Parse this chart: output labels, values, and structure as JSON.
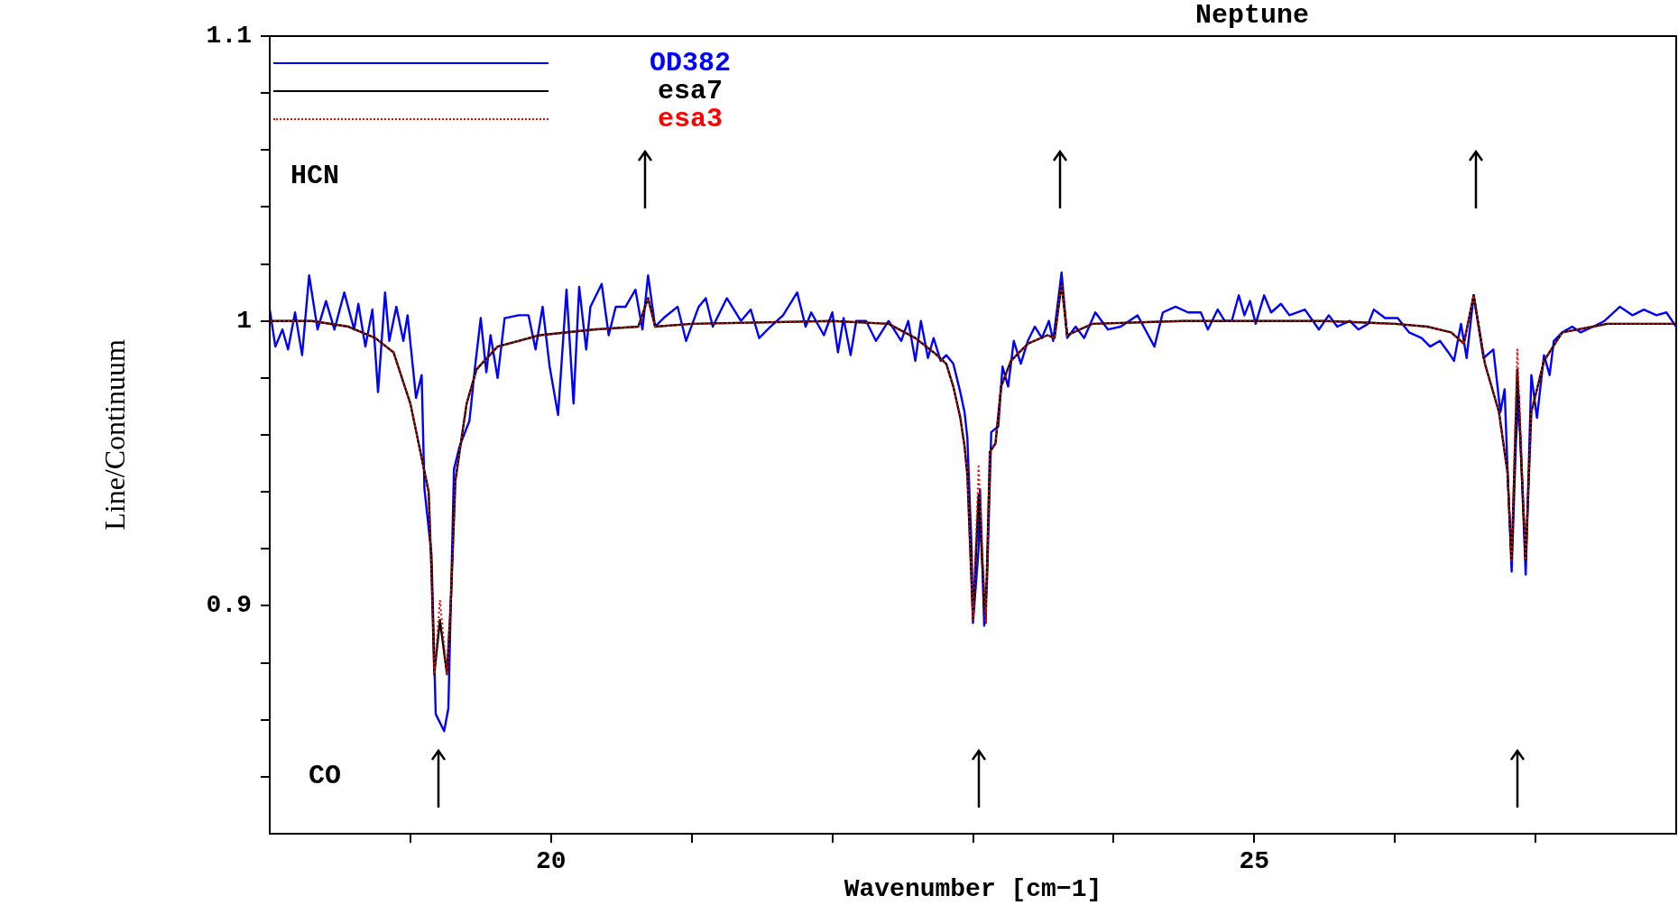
{
  "chart_data": {
    "type": "line",
    "title": "Neptune",
    "xlabel": "Wavenumber [cm−1]",
    "ylabel": "Line/Continuum",
    "annotations": [
      "HCN",
      "CO"
    ],
    "xlim": [
      18,
      28
    ],
    "ylim": [
      0.82,
      1.1
    ],
    "xticks": [
      {
        "value": 19,
        "label": null
      },
      20,
      {
        "value": 21,
        "label": null
      },
      {
        "value": 22,
        "label": null
      },
      {
        "value": 23,
        "label": null
      },
      {
        "value": 24,
        "label": null
      },
      25,
      {
        "value": 26,
        "label": null
      },
      {
        "value": 27,
        "label": null
      }
    ],
    "yticks": [
      {
        "value": 0.84,
        "label": null
      },
      {
        "value": 0.86,
        "label": null
      },
      {
        "value": 0.88,
        "label": null
      },
      0.9,
      {
        "value": 0.92,
        "label": null
      },
      {
        "value": 0.94,
        "label": null
      },
      {
        "value": 0.96,
        "label": null
      },
      {
        "value": 0.98,
        "label": null
      },
      1,
      {
        "value": 1.02,
        "label": null
      },
      {
        "value": 1.04,
        "label": null
      },
      {
        "value": 1.06,
        "label": null
      },
      {
        "value": 1.08,
        "label": null
      },
      1.1
    ],
    "grid": false,
    "legend": "top left",
    "marker": "none",
    "series": [
      {
        "name": "OD382",
        "color": "#0000ff",
        "line_style": "solid",
        "x": [
          18.0,
          18.04,
          18.09,
          18.13,
          18.18,
          18.23,
          18.28,
          18.34,
          18.4,
          18.46,
          18.53,
          18.6,
          18.63,
          18.68,
          18.73,
          18.77,
          18.82,
          18.85,
          18.9,
          18.95,
          18.98,
          19.04,
          19.08,
          19.1,
          19.15,
          19.18,
          19.24,
          19.27,
          19.31,
          19.35,
          19.42,
          19.46,
          19.5,
          19.54,
          19.57,
          19.62,
          19.67,
          19.77,
          19.84,
          19.89,
          19.94,
          19.99,
          20.05,
          20.11,
          20.16,
          20.2,
          20.25,
          20.28,
          20.36,
          20.41,
          20.46,
          20.53,
          20.6,
          20.65,
          20.69,
          20.74,
          20.8,
          20.9,
          20.96,
          21.05,
          21.1,
          21.15,
          21.25,
          21.35,
          21.42,
          21.48,
          21.56,
          21.65,
          21.75,
          21.81,
          21.85,
          21.94,
          22.0,
          22.04,
          22.08,
          22.13,
          22.17,
          22.24,
          22.31,
          22.4,
          22.49,
          22.54,
          22.59,
          22.63,
          22.68,
          22.72,
          22.77,
          22.81,
          22.86,
          22.91,
          22.94,
          22.96,
          22.99,
          23.0,
          23.04,
          23.05,
          23.08,
          23.1,
          23.13,
          23.18,
          23.21,
          23.25,
          23.29,
          23.34,
          23.39,
          23.44,
          23.49,
          23.54,
          23.57,
          23.63,
          23.67,
          23.73,
          23.79,
          23.87,
          23.96,
          24.05,
          24.17,
          24.29,
          24.35,
          24.44,
          24.53,
          24.62,
          24.67,
          24.74,
          24.79,
          24.84,
          24.89,
          24.93,
          24.97,
          25.01,
          25.07,
          25.12,
          25.19,
          25.25,
          25.36,
          25.46,
          25.53,
          25.59,
          25.68,
          25.74,
          25.81,
          25.85,
          25.93,
          26.02,
          26.1,
          26.19,
          26.25,
          26.32,
          26.38,
          26.42,
          26.47,
          26.51,
          26.56,
          26.63,
          26.7,
          26.75,
          26.78,
          26.8,
          26.83,
          26.86,
          26.88,
          26.93,
          26.97,
          27.01,
          27.06,
          27.1,
          27.13,
          27.19,
          27.26,
          27.32,
          27.41,
          27.49,
          27.6,
          27.69,
          27.77,
          27.86,
          27.93,
          28.0
        ],
        "values": [
          1.004,
          0.991,
          0.997,
          0.99,
          1.003,
          0.988,
          1.016,
          0.997,
          1.007,
          0.997,
          1.01,
          0.997,
          1.006,
          0.991,
          1.004,
          0.975,
          1.01,
          0.993,
          1.005,
          0.993,
          1.002,
          0.973,
          0.981,
          0.941,
          0.918,
          0.862,
          0.856,
          0.864,
          0.948,
          0.956,
          0.965,
          0.984,
          1.001,
          0.982,
          0.995,
          0.98,
          1.001,
          1.002,
          1.002,
          0.99,
          1.005,
          0.984,
          0.967,
          1.011,
          0.971,
          1.012,
          0.99,
          1.005,
          1.013,
          0.995,
          1.005,
          1.005,
          1.011,
          0.997,
          1.016,
          0.998,
          1.001,
          1.005,
          0.993,
          1.005,
          1.008,
          0.998,
          1.008,
          1.0,
          1.004,
          0.994,
          0.998,
          1.002,
          1.01,
          0.998,
          1.003,
          0.995,
          1.003,
          0.989,
          1.001,
          0.988,
          1.0,
          1.0,
          0.993,
          1.0,
          0.993,
          1.0,
          0.986,
          1.0,
          0.987,
          0.994,
          0.986,
          0.988,
          0.985,
          0.975,
          0.968,
          0.959,
          0.92,
          0.894,
          0.92,
          0.941,
          0.893,
          0.909,
          0.961,
          0.963,
          0.984,
          0.977,
          0.993,
          0.985,
          0.993,
          0.998,
          0.994,
          1.0,
          0.993,
          1.017,
          0.994,
          0.998,
          0.994,
          1.003,
          0.997,
          0.998,
          1.002,
          0.991,
          1.003,
          1.005,
          1.003,
          1.003,
          0.997,
          1.004,
          1.0,
          1.0,
          1.009,
          1.002,
          1.007,
          0.999,
          1.009,
          1.003,
          1.006,
          1.002,
          1.004,
          0.997,
          1.002,
          0.998,
          1.0,
          0.997,
          0.999,
          1.004,
          1.001,
          1.001,
          0.996,
          0.994,
          0.991,
          0.993,
          0.989,
          0.986,
          0.999,
          0.987,
          1.009,
          0.987,
          0.99,
          0.968,
          0.976,
          0.949,
          0.912,
          0.957,
          0.974,
          0.911,
          0.981,
          0.966,
          0.988,
          0.981,
          0.993,
          0.996,
          0.998,
          0.996,
          0.998,
          1.0,
          1.005,
          1.002,
          1.004,
          1.002,
          1.003,
          0.998
        ]
      },
      {
        "name": "esa7",
        "color": "#000000",
        "line_style": "solid",
        "x": [
          18.0,
          18.3,
          18.56,
          18.75,
          18.88,
          19.0,
          19.13,
          19.15,
          19.17,
          19.21,
          19.26,
          19.29,
          19.32,
          19.4,
          19.47,
          19.62,
          19.92,
          20.3,
          20.62,
          20.69,
          20.74,
          21.0,
          22.0,
          22.4,
          22.59,
          22.72,
          22.81,
          22.86,
          22.91,
          22.94,
          22.96,
          23.0,
          23.04,
          23.09,
          23.12,
          23.16,
          23.2,
          23.27,
          23.39,
          23.53,
          23.58,
          23.63,
          23.67,
          23.85,
          24.5,
          25.5,
          26.0,
          26.23,
          26.4,
          26.49,
          26.56,
          26.64,
          26.74,
          26.8,
          26.83,
          26.87,
          26.93,
          26.97,
          27.06,
          27.19,
          27.51,
          28.0
        ],
        "values": [
          1.0,
          1.0,
          0.998,
          0.994,
          0.989,
          0.971,
          0.94,
          0.912,
          0.876,
          0.895,
          0.876,
          0.904,
          0.944,
          0.971,
          0.983,
          0.991,
          0.995,
          0.997,
          0.998,
          1.008,
          0.998,
          0.999,
          1.0,
          0.999,
          0.994,
          0.989,
          0.985,
          0.977,
          0.966,
          0.956,
          0.946,
          0.895,
          0.939,
          0.894,
          0.954,
          0.957,
          0.977,
          0.986,
          0.992,
          0.995,
          0.994,
          1.013,
          0.995,
          0.999,
          1.0,
          1.0,
          0.999,
          0.998,
          0.996,
          0.992,
          1.009,
          0.985,
          0.968,
          0.947,
          0.916,
          0.983,
          0.916,
          0.968,
          0.986,
          0.996,
          0.999,
          0.999
        ]
      },
      {
        "name": "esa3",
        "color": "#ff0000",
        "line_style": "dotted",
        "x": [
          18.0,
          18.3,
          18.56,
          18.75,
          18.88,
          19.0,
          19.13,
          19.15,
          19.17,
          19.21,
          19.26,
          19.29,
          19.32,
          19.4,
          19.47,
          19.62,
          19.92,
          20.3,
          20.62,
          20.69,
          20.74,
          21.0,
          22.0,
          22.4,
          22.59,
          22.72,
          22.81,
          22.86,
          22.91,
          22.94,
          22.96,
          23.0,
          23.04,
          23.09,
          23.12,
          23.16,
          23.2,
          23.27,
          23.39,
          23.53,
          23.58,
          23.63,
          23.67,
          23.85,
          24.5,
          25.5,
          26.0,
          26.23,
          26.4,
          26.49,
          26.56,
          26.64,
          26.74,
          26.8,
          26.83,
          26.87,
          26.93,
          26.97,
          27.06,
          27.19,
          27.51,
          28.0
        ],
        "values": [
          1.0,
          1.0,
          0.998,
          0.994,
          0.989,
          0.971,
          0.94,
          0.912,
          0.876,
          0.902,
          0.876,
          0.904,
          0.944,
          0.971,
          0.983,
          0.991,
          0.995,
          0.997,
          0.998,
          1.008,
          0.998,
          0.999,
          1.0,
          0.999,
          0.994,
          0.989,
          0.985,
          0.977,
          0.966,
          0.956,
          0.946,
          0.895,
          0.949,
          0.894,
          0.954,
          0.957,
          0.977,
          0.986,
          0.992,
          0.995,
          0.994,
          1.013,
          0.995,
          0.999,
          1.0,
          1.0,
          0.999,
          0.998,
          0.996,
          0.992,
          1.009,
          0.985,
          0.968,
          0.947,
          0.916,
          0.99,
          0.916,
          0.968,
          0.986,
          0.996,
          0.999,
          0.999
        ]
      }
    ]
  }
}
